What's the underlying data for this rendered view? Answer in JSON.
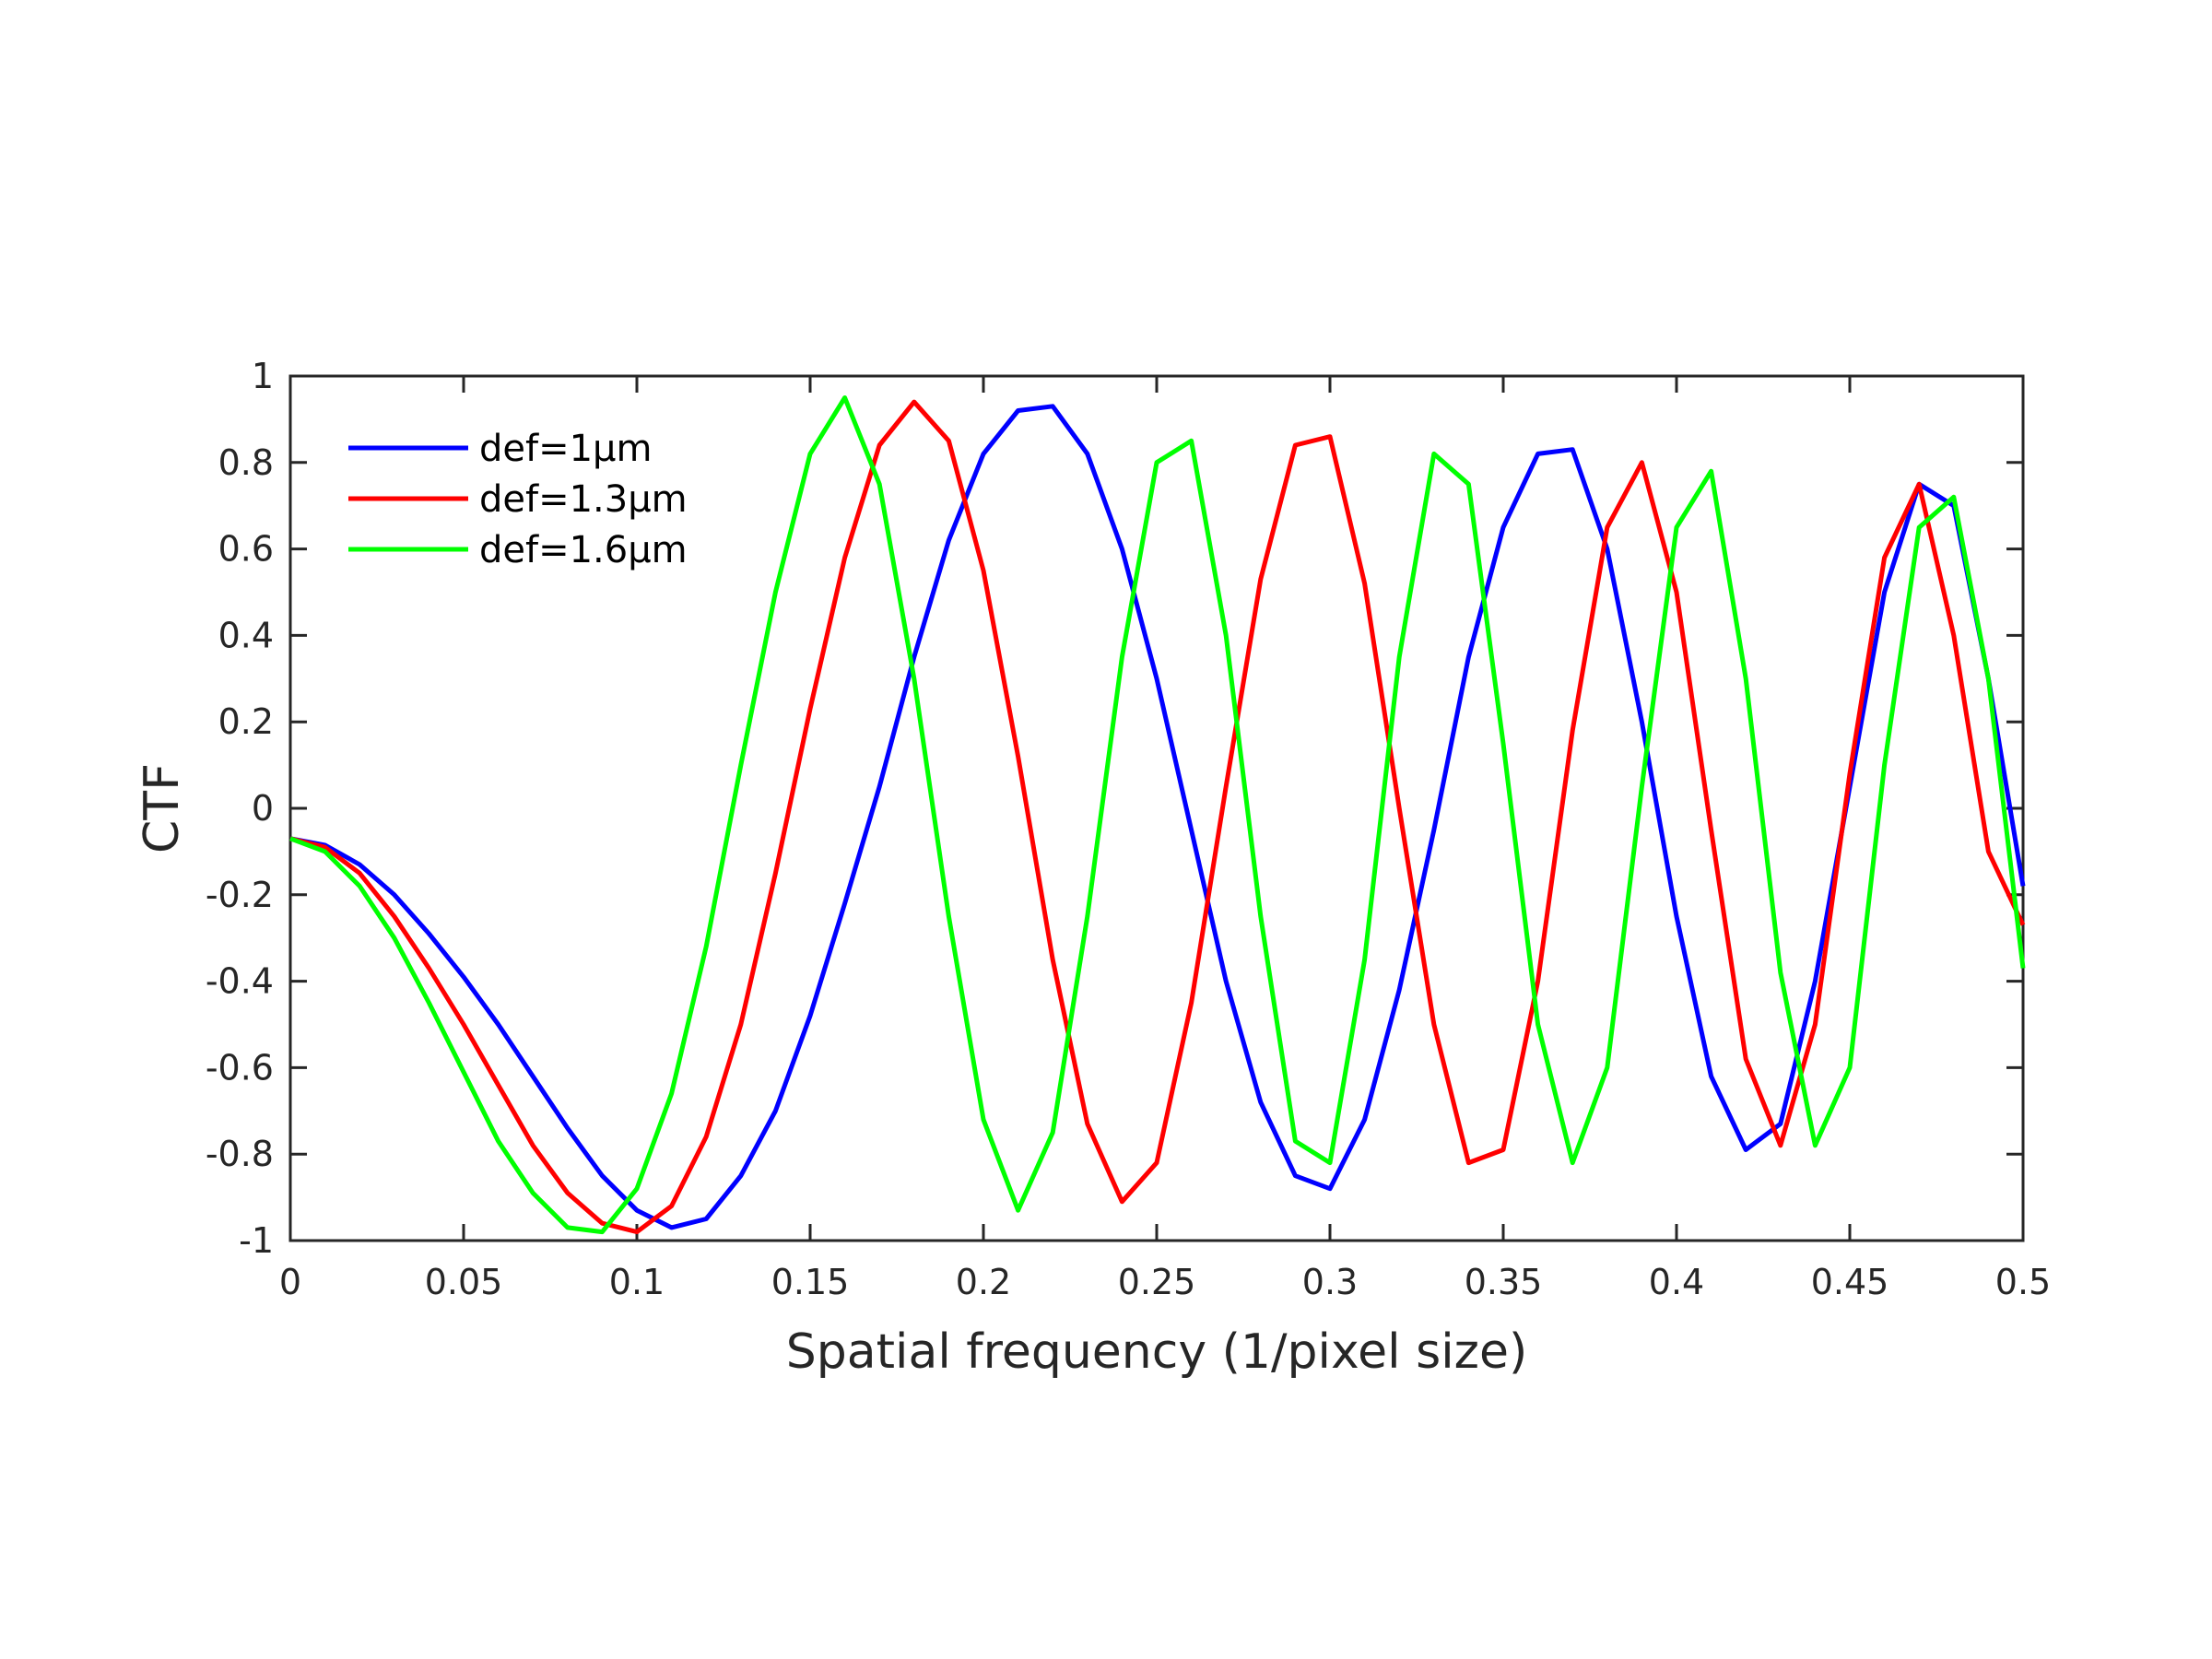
{
  "chart_data": {
    "type": "line",
    "xlabel": "Spatial frequency (1/pixel size)",
    "ylabel": "CTF",
    "xlim": [
      0,
      0.5
    ],
    "ylim": [
      -1,
      1
    ],
    "xticks": [
      "0",
      "0.05",
      "0.1",
      "0.15",
      "0.2",
      "0.25",
      "0.3",
      "0.35",
      "0.4",
      "0.45",
      "0.5"
    ],
    "yticks": [
      "-1",
      "-0.8",
      "-0.6",
      "-0.4",
      "-0.2",
      "0",
      "0.2",
      "0.4",
      "0.6",
      "0.8",
      "1"
    ],
    "grid": false,
    "legend_position": "top-left",
    "series": [
      {
        "name": "def=1μm",
        "color": "#0000ff",
        "x": [
          0,
          0.01,
          0.02,
          0.03,
          0.04,
          0.05,
          0.06,
          0.07,
          0.08,
          0.09,
          0.1,
          0.11,
          0.12,
          0.13,
          0.14,
          0.15,
          0.16,
          0.17,
          0.18,
          0.19,
          0.2,
          0.21,
          0.22,
          0.23,
          0.24,
          0.25,
          0.26,
          0.27,
          0.28,
          0.29,
          0.3,
          0.31,
          0.32,
          0.33,
          0.34,
          0.35,
          0.36,
          0.37,
          0.38,
          0.39,
          0.4,
          0.41,
          0.42,
          0.43,
          0.44,
          0.45,
          0.46,
          0.47,
          0.48,
          0.49,
          0.5
        ],
        "y": [
          -0.07,
          -0.085,
          -0.13,
          -0.2,
          -0.29,
          -0.39,
          -0.5,
          -0.62,
          -0.74,
          -0.85,
          -0.93,
          -0.97,
          -0.95,
          -0.85,
          -0.7,
          -0.48,
          -0.22,
          0.05,
          0.35,
          0.62,
          0.82,
          0.92,
          0.93,
          0.82,
          0.6,
          0.3,
          -0.05,
          -0.4,
          -0.68,
          -0.85,
          -0.88,
          -0.72,
          -0.42,
          -0.05,
          0.35,
          0.65,
          0.82,
          0.83,
          0.6,
          0.2,
          -0.25,
          -0.62,
          -0.79,
          -0.73,
          -0.4,
          0.05,
          0.5,
          0.75,
          0.7,
          0.3,
          -0.18
        ]
      },
      {
        "name": "def=1.3μm",
        "color": "#ff0000",
        "x": [
          0,
          0.01,
          0.02,
          0.03,
          0.04,
          0.05,
          0.06,
          0.07,
          0.08,
          0.09,
          0.1,
          0.11,
          0.12,
          0.13,
          0.14,
          0.15,
          0.16,
          0.17,
          0.18,
          0.19,
          0.2,
          0.21,
          0.22,
          0.23,
          0.24,
          0.25,
          0.26,
          0.27,
          0.28,
          0.29,
          0.3,
          0.31,
          0.32,
          0.33,
          0.34,
          0.35,
          0.36,
          0.37,
          0.38,
          0.39,
          0.4,
          0.41,
          0.42,
          0.43,
          0.44,
          0.45,
          0.46,
          0.47,
          0.48,
          0.49,
          0.5
        ],
        "y": [
          -0.07,
          -0.09,
          -0.15,
          -0.25,
          -0.37,
          -0.5,
          -0.64,
          -0.78,
          -0.89,
          -0.96,
          -0.98,
          -0.92,
          -0.76,
          -0.5,
          -0.15,
          0.23,
          0.58,
          0.84,
          0.94,
          0.85,
          0.55,
          0.12,
          -0.35,
          -0.73,
          -0.91,
          -0.82,
          -0.45,
          0.05,
          0.53,
          0.84,
          0.86,
          0.52,
          0.0,
          -0.5,
          -0.82,
          -0.79,
          -0.4,
          0.18,
          0.65,
          0.8,
          0.5,
          -0.05,
          -0.58,
          -0.78,
          -0.5,
          0.08,
          0.58,
          0.75,
          0.4,
          -0.1,
          -0.27
        ]
      },
      {
        "name": "def=1.6μm",
        "color": "#00ff00",
        "x": [
          0,
          0.01,
          0.02,
          0.03,
          0.04,
          0.05,
          0.06,
          0.07,
          0.08,
          0.09,
          0.1,
          0.11,
          0.12,
          0.13,
          0.14,
          0.15,
          0.16,
          0.17,
          0.18,
          0.19,
          0.2,
          0.21,
          0.22,
          0.23,
          0.24,
          0.25,
          0.26,
          0.27,
          0.28,
          0.29,
          0.3,
          0.31,
          0.32,
          0.33,
          0.34,
          0.35,
          0.36,
          0.37,
          0.38,
          0.39,
          0.4,
          0.41,
          0.42,
          0.43,
          0.44,
          0.45,
          0.46,
          0.47,
          0.48,
          0.49,
          0.5
        ],
        "y": [
          -0.07,
          -0.1,
          -0.18,
          -0.3,
          -0.45,
          -0.61,
          -0.77,
          -0.89,
          -0.97,
          -0.98,
          -0.88,
          -0.66,
          -0.32,
          0.1,
          0.5,
          0.82,
          0.95,
          0.75,
          0.3,
          -0.25,
          -0.72,
          -0.93,
          -0.75,
          -0.25,
          0.35,
          0.8,
          0.85,
          0.4,
          -0.25,
          -0.77,
          -0.82,
          -0.35,
          0.35,
          0.82,
          0.75,
          0.15,
          -0.5,
          -0.82,
          -0.6,
          0.05,
          0.65,
          0.78,
          0.3,
          -0.38,
          -0.78,
          -0.6,
          0.1,
          0.65,
          0.72,
          0.3,
          -0.37
        ]
      }
    ]
  }
}
